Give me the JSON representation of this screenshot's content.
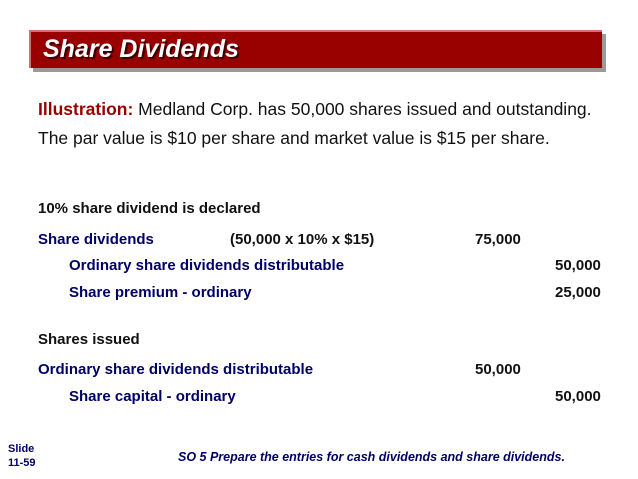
{
  "header": {
    "title": "Share Dividends"
  },
  "illustration": {
    "label": "Illustration:",
    "text": "Medland Corp. has 50,000 shares issued and outstanding.  The par value is $10 per share and market value is $15 per share."
  },
  "entry1": {
    "heading": "10% share dividend is declared",
    "debit_account": "Share dividends",
    "calculation": "(50,000 x 10% x $15)",
    "debit_amount": "75,000",
    "credit1_account": "Ordinary share dividends distributable",
    "credit1_amount": "50,000",
    "credit2_account": "Share premium - ordinary",
    "credit2_amount": "25,000"
  },
  "entry2": {
    "heading": "Shares issued",
    "debit_account": "Ordinary share dividends distributable",
    "debit_amount": "50,000",
    "credit_account": "Share capital - ordinary",
    "credit_amount": "50,000"
  },
  "footer": {
    "slide_label": "Slide",
    "slide_number": "11-59",
    "objective": "SO 5  Prepare the entries for cash dividends and share dividends."
  }
}
